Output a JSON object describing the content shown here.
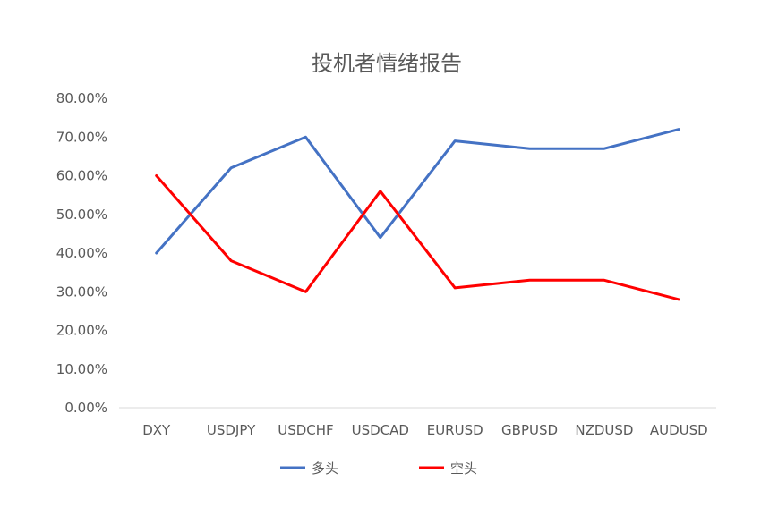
{
  "chart_data": {
    "type": "line",
    "title": "投机者情绪报告",
    "xlabel": "",
    "ylabel": "",
    "categories": [
      "DXY",
      "USDJPY",
      "USDCHF",
      "USDCAD",
      "EURUSD",
      "GBPUSD",
      "NZDUSD",
      "AUDUSD"
    ],
    "y_ticks": [
      "0.00%",
      "10.00%",
      "20.00%",
      "30.00%",
      "40.00%",
      "50.00%",
      "60.00%",
      "70.00%",
      "80.00%"
    ],
    "ylim": [
      0,
      80
    ],
    "grid": false,
    "legend": "bottom",
    "series": [
      {
        "name": "多头",
        "color": "#4472C4",
        "values": [
          40,
          62,
          70,
          44,
          69,
          67,
          67,
          72
        ]
      },
      {
        "name": "空头",
        "color": "#FF0000",
        "values": [
          60,
          38,
          30,
          56,
          31,
          33,
          33,
          28
        ]
      }
    ]
  }
}
